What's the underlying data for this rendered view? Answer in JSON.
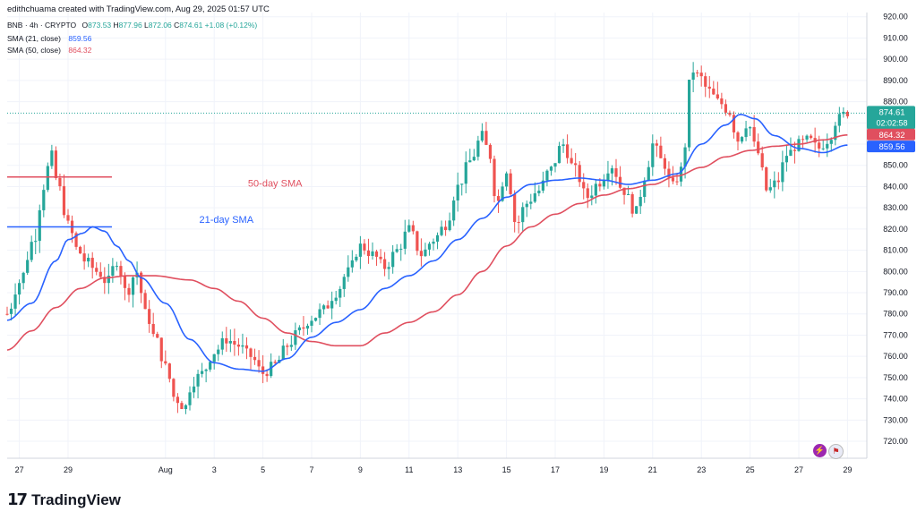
{
  "header": {
    "credit": "edithchuama created with TradingView.com, Aug 29, 2025 01:57 UTC",
    "symbol": "BNB · 4h · CRYPTO",
    "ohlc": {
      "o_label": "O",
      "o": "873.53",
      "h_label": "H",
      "h": "877.96",
      "l_label": "L",
      "l": "872.06",
      "c_label": "C",
      "c": "874.61",
      "change": "+1.08 (+0.12%)"
    },
    "indicators": [
      {
        "label": "SMA (21, close)",
        "value": "859.56",
        "color": "#2962ff"
      },
      {
        "label": "SMA (50, close)",
        "value": "864.32",
        "color": "#e04f5f"
      }
    ]
  },
  "annotations": [
    {
      "text": "50-day SMA",
      "color": "#e04f5f"
    },
    {
      "text": "21-day SMA",
      "color": "#2962ff"
    }
  ],
  "price_tag": {
    "price": "874.61",
    "countdown": "02:02:58"
  },
  "sma_tags": {
    "sma50": "864.32",
    "sma21": "859.56"
  },
  "brand": {
    "name": "TradingView"
  },
  "icons": [
    "lightning-icon",
    "us-flag-icon"
  ],
  "colors": {
    "up": "#26a69a",
    "down": "#ef5350",
    "sma21": "#2962ff",
    "sma50": "#e04f5f",
    "tag": "#26a69a"
  },
  "chart_data": {
    "type": "candlestick",
    "interval": "4h",
    "y_ticks": [
      "720.00",
      "730.00",
      "740.00",
      "750.00",
      "760.00",
      "770.00",
      "780.00",
      "790.00",
      "800.00",
      "810.00",
      "820.00",
      "830.00",
      "840.00",
      "850.00",
      "860.00",
      "870.00",
      "880.00",
      "890.00",
      "900.00",
      "910.00",
      "920.00"
    ],
    "ylim": [
      712,
      922
    ],
    "x_ticks": [
      "27",
      "29",
      "Aug",
      "3",
      "5",
      "7",
      "9",
      "11",
      "13",
      "15",
      "17",
      "19",
      "21",
      "23",
      "25",
      "27",
      "29"
    ],
    "x_tick_days": [
      -5,
      -3,
      1,
      3,
      5,
      7,
      9,
      11,
      13,
      15,
      17,
      19,
      21,
      23,
      25,
      27,
      29
    ],
    "day_range": [
      -5.5,
      29.5
    ],
    "anchors": [
      [
        -5.5,
        780
      ],
      [
        -5.0,
        795
      ],
      [
        -4.4,
        815
      ],
      [
        -4.0,
        840
      ],
      [
        -3.7,
        855
      ],
      [
        -3.4,
        840
      ],
      [
        -3.0,
        822
      ],
      [
        -2.6,
        810
      ],
      [
        -2.3,
        805
      ],
      [
        -1.8,
        800
      ],
      [
        -1.4,
        795
      ],
      [
        -1.0,
        805
      ],
      [
        -0.6,
        790
      ],
      [
        -0.2,
        800
      ],
      [
        0.2,
        780
      ],
      [
        0.6,
        768
      ],
      [
        1.0,
        755
      ],
      [
        1.4,
        740
      ],
      [
        1.8,
        736
      ],
      [
        2.1,
        748
      ],
      [
        2.5,
        752
      ],
      [
        3.0,
        762
      ],
      [
        3.5,
        768
      ],
      [
        4.0,
        765
      ],
      [
        4.5,
        760
      ],
      [
        5.0,
        752
      ],
      [
        5.5,
        756
      ],
      [
        6.0,
        765
      ],
      [
        6.5,
        772
      ],
      [
        7.0,
        778
      ],
      [
        7.5,
        782
      ],
      [
        8.0,
        790
      ],
      [
        8.5,
        800
      ],
      [
        9.0,
        812
      ],
      [
        9.5,
        808
      ],
      [
        10.0,
        802
      ],
      [
        10.5,
        810
      ],
      [
        11.0,
        820
      ],
      [
        11.5,
        808
      ],
      [
        12.0,
        815
      ],
      [
        12.5,
        822
      ],
      [
        13.0,
        840
      ],
      [
        13.5,
        852
      ],
      [
        14.0,
        864
      ],
      [
        14.3,
        855
      ],
      [
        14.6,
        832
      ],
      [
        15.0,
        848
      ],
      [
        15.4,
        822
      ],
      [
        15.8,
        832
      ],
      [
        16.3,
        838
      ],
      [
        16.8,
        848
      ],
      [
        17.3,
        860
      ],
      [
        17.8,
        848
      ],
      [
        18.3,
        835
      ],
      [
        18.8,
        842
      ],
      [
        19.3,
        850
      ],
      [
        19.8,
        838
      ],
      [
        20.3,
        828
      ],
      [
        20.7,
        845
      ],
      [
        21.0,
        860
      ],
      [
        21.4,
        852
      ],
      [
        21.8,
        840
      ],
      [
        22.2,
        848
      ],
      [
        22.6,
        895
      ],
      [
        22.9,
        892
      ],
      [
        23.3,
        885
      ],
      [
        23.7,
        880
      ],
      [
        24.1,
        876
      ],
      [
        24.5,
        862
      ],
      [
        24.9,
        870
      ],
      [
        25.3,
        856
      ],
      [
        25.7,
        838
      ],
      [
        26.1,
        842
      ],
      [
        26.5,
        855
      ],
      [
        27.0,
        860
      ],
      [
        27.4,
        862
      ],
      [
        27.8,
        858
      ],
      [
        28.2,
        862
      ],
      [
        28.6,
        872
      ],
      [
        29.0,
        875
      ]
    ],
    "sma21_anchors": [
      [
        -5.5,
        777
      ],
      [
        -4.5,
        785
      ],
      [
        -3.5,
        805
      ],
      [
        -3.0,
        815
      ],
      [
        -2.4,
        818
      ],
      [
        -2.0,
        821
      ],
      [
        -1.5,
        819
      ],
      [
        -1.0,
        812
      ],
      [
        -0.5,
        805
      ],
      [
        0.0,
        797
      ],
      [
        1.0,
        785
      ],
      [
        2.0,
        768
      ],
      [
        3.0,
        757
      ],
      [
        4.0,
        754
      ],
      [
        5.0,
        753
      ],
      [
        6.0,
        759
      ],
      [
        7.0,
        769
      ],
      [
        8.0,
        776
      ],
      [
        9.0,
        782
      ],
      [
        10.0,
        792
      ],
      [
        11.0,
        798
      ],
      [
        12.0,
        805
      ],
      [
        13.0,
        815
      ],
      [
        14.0,
        825
      ],
      [
        15.0,
        835
      ],
      [
        16.0,
        841
      ],
      [
        17.0,
        843
      ],
      [
        18.0,
        844
      ],
      [
        19.0,
        843
      ],
      [
        20.0,
        841
      ],
      [
        21.0,
        843
      ],
      [
        22.0,
        846
      ],
      [
        23.0,
        860
      ],
      [
        24.0,
        869
      ],
      [
        24.6,
        874
      ],
      [
        25.2,
        872
      ],
      [
        26.0,
        864
      ],
      [
        27.0,
        858
      ],
      [
        28.0,
        856
      ],
      [
        29.0,
        859.56
      ]
    ],
    "sma50_anchors": [
      [
        -5.5,
        763
      ],
      [
        -4.5,
        772
      ],
      [
        -3.5,
        783
      ],
      [
        -2.5,
        792
      ],
      [
        -1.5,
        797
      ],
      [
        -0.5,
        798
      ],
      [
        0.5,
        798
      ],
      [
        2.0,
        796
      ],
      [
        3.0,
        792
      ],
      [
        4.0,
        786
      ],
      [
        5.0,
        778
      ],
      [
        6.0,
        771
      ],
      [
        7.0,
        767
      ],
      [
        8.0,
        765
      ],
      [
        9.0,
        765
      ],
      [
        10.0,
        771
      ],
      [
        11.0,
        776
      ],
      [
        12.0,
        781
      ],
      [
        13.0,
        789
      ],
      [
        14.0,
        800
      ],
      [
        15.0,
        812
      ],
      [
        16.0,
        821
      ],
      [
        17.0,
        827
      ],
      [
        18.0,
        832
      ],
      [
        19.0,
        836
      ],
      [
        20.0,
        839
      ],
      [
        21.0,
        841
      ],
      [
        22.0,
        845
      ],
      [
        23.0,
        849
      ],
      [
        24.0,
        854
      ],
      [
        25.0,
        857
      ],
      [
        26.0,
        859
      ],
      [
        27.0,
        860
      ],
      [
        28.0,
        862
      ],
      [
        29.0,
        864.32
      ]
    ]
  }
}
